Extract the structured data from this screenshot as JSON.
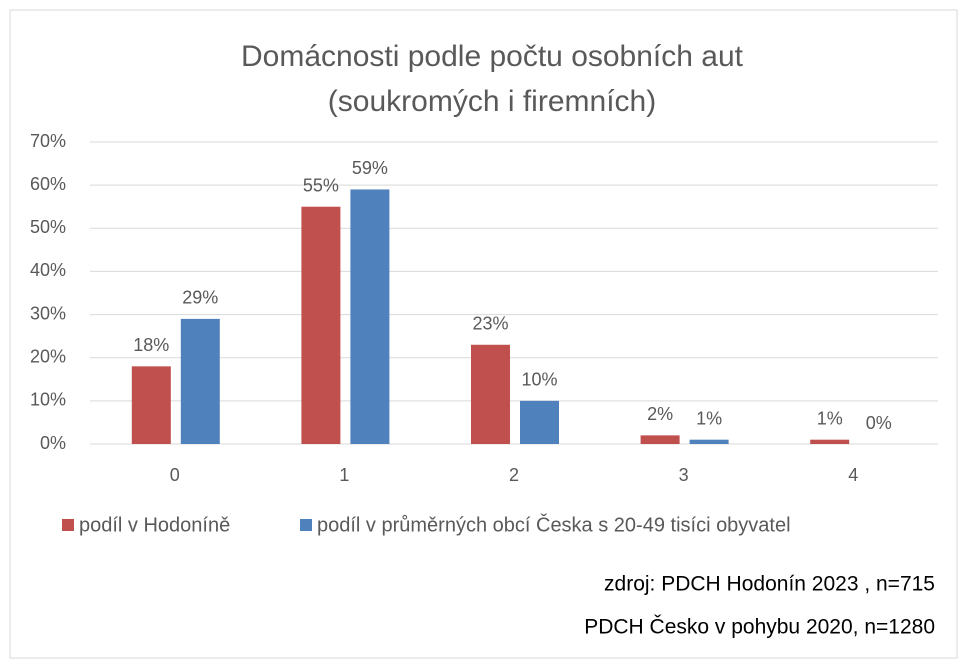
{
  "chart_data": {
    "type": "bar",
    "title": [
      "Domácnosti podle počtu osobních aut",
      "(soukromých i firemních)"
    ],
    "categories": [
      "0",
      "1",
      "2",
      "3",
      "4"
    ],
    "series": [
      {
        "name": "podíl v Hodoníně",
        "color": "#c0504d",
        "values": [
          18,
          55,
          23,
          2,
          1
        ],
        "value_labels": [
          "18%",
          "55%",
          "23%",
          "2%",
          "1%"
        ]
      },
      {
        "name": "podíl v průměrných obcí Česka s 20-49 tisíci obyvatel",
        "color": "#4f81bd",
        "values": [
          29,
          59,
          10,
          1,
          0
        ],
        "value_labels": [
          "29%",
          "59%",
          "10%",
          "1%",
          "0%"
        ]
      }
    ],
    "ylim": [
      0,
      70
    ],
    "yticks": [
      {
        "value": 0,
        "label": "0%"
      },
      {
        "value": 10,
        "label": "10%"
      },
      {
        "value": 20,
        "label": "20%"
      },
      {
        "value": 30,
        "label": "30%"
      },
      {
        "value": 40,
        "label": "40%"
      },
      {
        "value": 50,
        "label": "50%"
      },
      {
        "value": 60,
        "label": "60%"
      },
      {
        "value": 70,
        "label": "70%"
      }
    ],
    "grid": true,
    "legend": "bottom",
    "annotations": [
      "zdroj: PDCH Hodonín 2023 , n=715",
      "PDCH Česko v pohybu 2020, n=1280"
    ]
  }
}
